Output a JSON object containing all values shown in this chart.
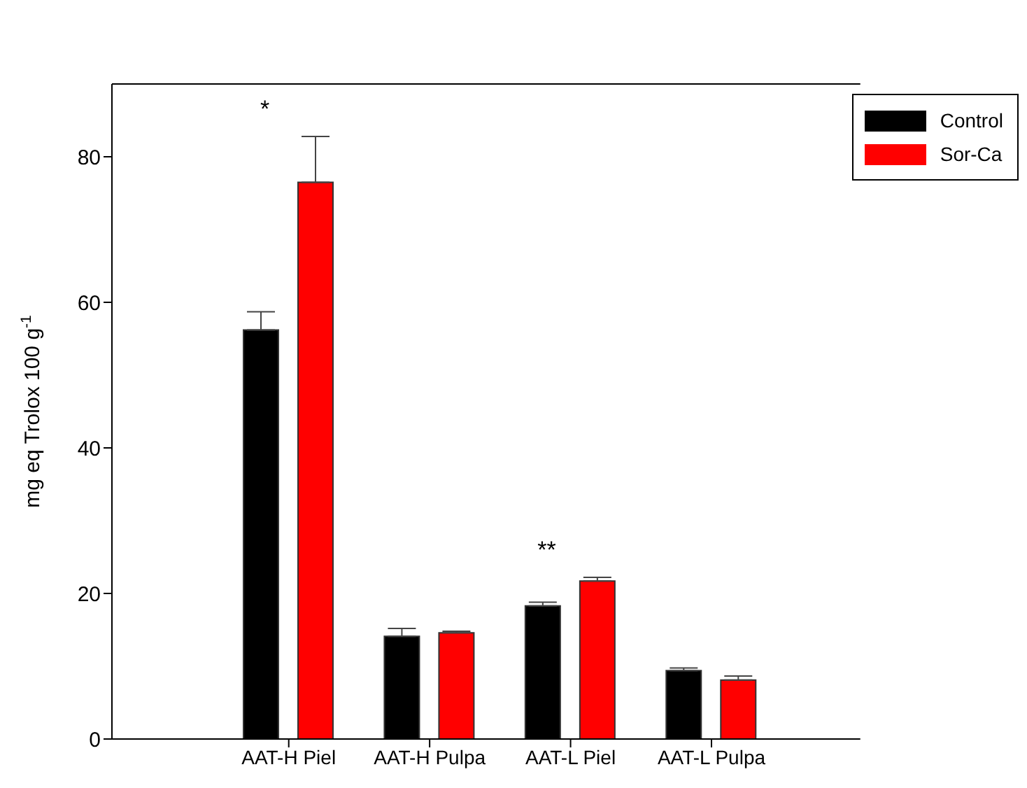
{
  "chart_data": {
    "type": "bar",
    "ylabel": "mg eq Trolox 100 g$^{-1}$",
    "categories": [
      "AAT-H Piel",
      "AAT-H Pulpa",
      "AAT-L Piel",
      "AAT-L Pulpa"
    ],
    "series": [
      {
        "name": "Control",
        "color": "#000000",
        "values": [
          56.2,
          14.1,
          18.3,
          9.4
        ],
        "errors": [
          2.5,
          1.1,
          0.5,
          0.35
        ]
      },
      {
        "name": "Sor-Ca",
        "color": "#ff0000",
        "values": [
          76.5,
          14.6,
          21.7,
          8.1
        ],
        "errors": [
          6.3,
          0.2,
          0.5,
          0.55
        ]
      }
    ],
    "ylim": [
      0,
      90
    ],
    "yticks": [
      0,
      20,
      40,
      60,
      80
    ],
    "grid": false,
    "legend": "top right",
    "annotations": [
      "*",
      "**"
    ]
  }
}
